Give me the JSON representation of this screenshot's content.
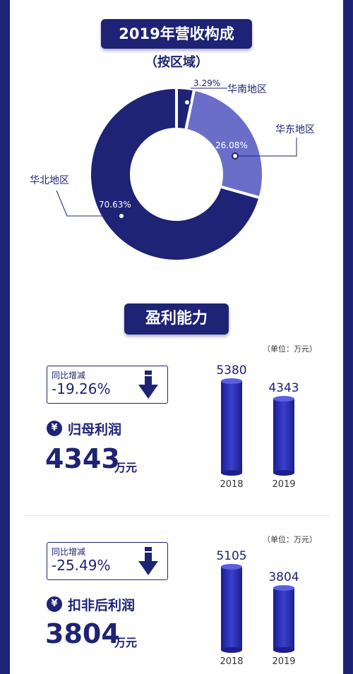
{
  "colors": {
    "navy": "#1e2375",
    "accent": "#6a6ec9",
    "bar": "#2a2fb7"
  },
  "revenue": {
    "title": "2019年营收构成",
    "subtitle": "（按区域）"
  },
  "profit": {
    "title": "盈利能力",
    "unit_note": "（单位：万元）",
    "change_label": "同比增减",
    "value_unit": "万元",
    "currency_symbol": "¥"
  },
  "chart_data": [
    {
      "type": "pie",
      "title": "2019年营收构成",
      "subtitle": "（按区域）",
      "variant": "donut",
      "slices": [
        {
          "label": "华南地区",
          "value": 3.29,
          "display": "3.29%",
          "color": "#1e2375"
        },
        {
          "label": "华东地区",
          "value": 26.08,
          "display": "26.08%",
          "color": "#6a6ec9"
        },
        {
          "label": "华北地区",
          "value": 70.63,
          "display": "70.63%",
          "color": "#1e2375"
        }
      ]
    },
    {
      "type": "bar",
      "title": "归母利润",
      "unit": "万元",
      "categories": [
        "2018",
        "2019"
      ],
      "values": [
        5380,
        4343
      ],
      "change": "-19.26%",
      "current_value": "4343"
    },
    {
      "type": "bar",
      "title": "扣非后利润",
      "unit": "万元",
      "categories": [
        "2018",
        "2019"
      ],
      "values": [
        5105,
        3804
      ],
      "change": "-25.49%",
      "current_value": "3804"
    }
  ]
}
